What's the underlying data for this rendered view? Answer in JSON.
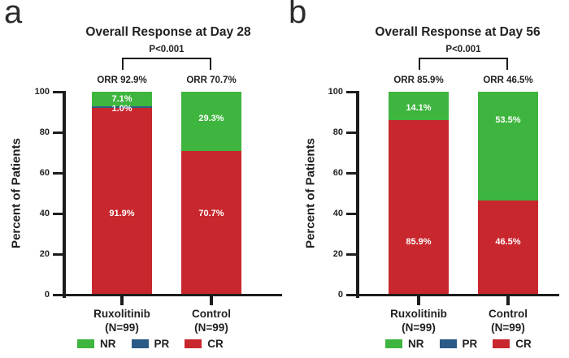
{
  "colors": {
    "NR": "#3eb53e",
    "PR": "#2c5a87",
    "CR": "#c8272d",
    "ink": "#1c1c1c",
    "bar_label": "#ffffff"
  },
  "chart_data": [
    {
      "panel_letter": "a",
      "type": "bar",
      "stacked": true,
      "title": "Overall Response at Day 28",
      "p_value": "P<0.001",
      "ylabel": "Percent of Patients",
      "ylim": [
        0,
        100
      ],
      "yticks": [
        0,
        20,
        40,
        60,
        80,
        100
      ],
      "grid": false,
      "legend_position": "bottom",
      "legend": [
        "NR",
        "PR",
        "CR"
      ],
      "categories": [
        "Ruxolitinib (N=99)",
        "Control (N=99)"
      ],
      "bars": [
        {
          "group": "Ruxolitinib",
          "n": "(N=99)",
          "orr": "ORR 92.9%",
          "segments": [
            {
              "name": "NR",
              "value": 7.1,
              "label": "7.1%",
              "label_y_pct": 3.4
            },
            {
              "name": "PR",
              "value": 1.0,
              "label": "1.0%",
              "label_y_pct": 8.4
            },
            {
              "name": "CR",
              "value": 91.9,
              "label": "91.9%",
              "label_y_pct": 60
            }
          ]
        },
        {
          "group": "Control",
          "n": "(N=99)",
          "orr": "ORR 70.7%",
          "segments": [
            {
              "name": "NR",
              "value": 29.3,
              "label": "29.3%",
              "label_y_pct": 13.2
            },
            {
              "name": "PR",
              "value": 0,
              "label": "",
              "label_y_pct": 0
            },
            {
              "name": "CR",
              "value": 70.7,
              "label": "70.7%",
              "label_y_pct": 60
            }
          ]
        }
      ]
    },
    {
      "panel_letter": "b",
      "type": "bar",
      "stacked": true,
      "title": "Overall Response at Day 56",
      "p_value": "P<0.001",
      "ylabel": "Percent of Patients",
      "ylim": [
        0,
        100
      ],
      "yticks": [
        0,
        20,
        40,
        60,
        80,
        100
      ],
      "grid": false,
      "legend_position": "bottom",
      "legend": [
        "NR",
        "PR",
        "CR"
      ],
      "categories": [
        "Ruxolitinib (N=99)",
        "Control (N=99)"
      ],
      "bars": [
        {
          "group": "Ruxolitinib",
          "n": "(N=99)",
          "orr": "ORR 85.9%",
          "segments": [
            {
              "name": "NR",
              "value": 14.1,
              "label": "14.1%",
              "label_y_pct": 8
            },
            {
              "name": "PR",
              "value": 0,
              "label": "",
              "label_y_pct": 0
            },
            {
              "name": "CR",
              "value": 85.9,
              "label": "85.9%",
              "label_y_pct": 74
            }
          ]
        },
        {
          "group": "Control",
          "n": "(N=99)",
          "orr": "ORR 46.5%",
          "segments": [
            {
              "name": "NR",
              "value": 53.5,
              "label": "53.5%",
              "label_y_pct": 14
            },
            {
              "name": "PR",
              "value": 0,
              "label": "",
              "label_y_pct": 0
            },
            {
              "name": "CR",
              "value": 46.5,
              "label": "46.5%",
              "label_y_pct": 74
            }
          ]
        }
      ]
    }
  ]
}
